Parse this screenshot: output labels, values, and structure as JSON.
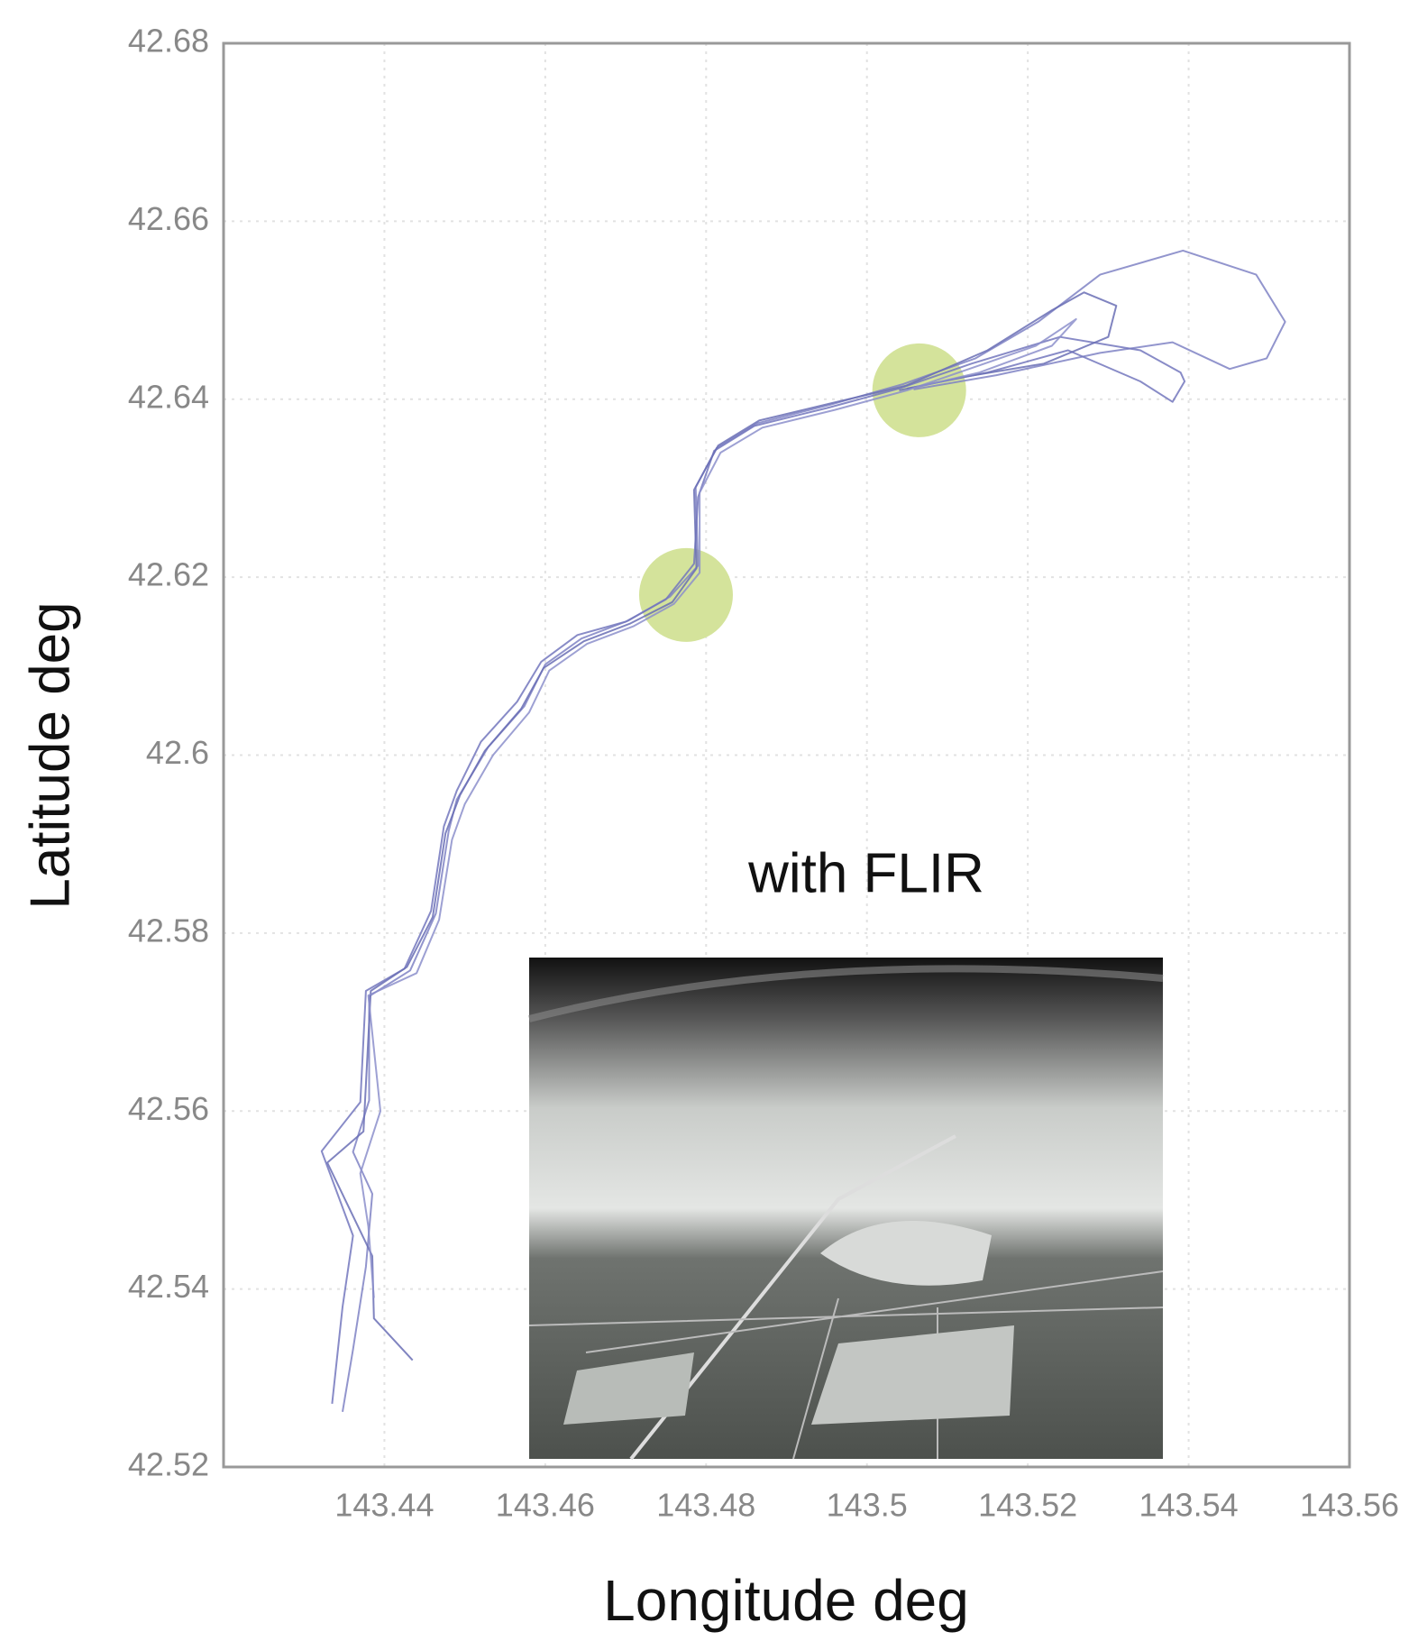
{
  "chart_data": {
    "type": "line",
    "xlabel": "Longitude deg",
    "ylabel": "Latitude deg",
    "annotation": "with FLIR",
    "xlim": [
      143.42,
      143.56
    ],
    "xticks": [
      143.44,
      143.46,
      143.48,
      143.5,
      143.52,
      143.54,
      143.56
    ],
    "ylim": [
      42.52,
      42.68
    ],
    "yticks": [
      42.52,
      42.54,
      42.56,
      42.58,
      42.6,
      42.62,
      42.64,
      42.66,
      42.68
    ],
    "grid": true,
    "highlights": [
      {
        "x": 143.4775,
        "y": 42.618,
        "color": "#d4e39b"
      },
      {
        "x": 143.5065,
        "y": 42.641,
        "color": "#d4e39b"
      }
    ],
    "series": [
      {
        "color": "#7f82c4",
        "x": [
          143.4348,
          143.4361,
          143.4377,
          143.4385,
          143.4361,
          143.4381,
          143.4381,
          143.4432,
          143.4464,
          143.448,
          143.449,
          143.4529,
          143.4574,
          143.46,
          143.4645,
          143.4703,
          143.4755,
          143.479,
          143.4787,
          143.4813,
          143.4864,
          143.4955,
          143.5045,
          143.5135,
          143.5213,
          143.529,
          143.5393,
          143.5484,
          143.552,
          143.5497,
          143.5451,
          143.538,
          143.529,
          143.5161,
          143.5058
        ],
        "values": [
          42.5262,
          42.5332,
          42.5425,
          42.5507,
          42.5554,
          42.5612,
          42.5729,
          42.5758,
          42.5822,
          42.5915,
          42.595,
          42.6009,
          42.6055,
          42.6102,
          42.6131,
          42.6151,
          42.6178,
          42.6213,
          42.6301,
          42.6345,
          42.6373,
          42.6394,
          42.6417,
          42.6446,
          42.6487,
          42.654,
          42.6567,
          42.654,
          42.6487,
          42.6446,
          42.6434,
          42.6464,
          42.6452,
          42.6427,
          42.6411
        ]
      },
      {
        "color": "#7377bd",
        "x": [
          143.4335,
          143.4348,
          143.4361,
          143.4322,
          143.437,
          143.4377,
          143.4425,
          143.4458,
          143.4474,
          143.449,
          143.452,
          143.4565,
          143.4595,
          143.464,
          143.47,
          143.475,
          143.4785,
          143.479,
          143.481,
          143.486,
          143.495,
          143.504,
          143.513,
          143.524,
          143.534,
          143.539,
          143.5395,
          143.538,
          143.534,
          143.525,
          143.515,
          143.505
        ],
        "values": [
          42.5271,
          42.538,
          42.546,
          42.5555,
          42.561,
          42.5735,
          42.576,
          42.5825,
          42.592,
          42.596,
          42.6015,
          42.606,
          42.6105,
          42.6135,
          42.615,
          42.6175,
          42.6215,
          42.629,
          42.6342,
          42.637,
          42.639,
          42.6412,
          42.644,
          42.647,
          42.6455,
          42.643,
          42.642,
          42.6397,
          42.642,
          42.6455,
          42.643,
          42.6412
        ]
      },
      {
        "color": "#6a6eb5",
        "x": [
          143.4435,
          143.4387,
          143.4385,
          143.4329,
          143.4374,
          143.4383,
          143.4428,
          143.446,
          143.4476,
          143.4494,
          143.4525,
          143.457,
          143.4598,
          143.4648,
          143.4706,
          143.4758,
          143.4788,
          143.4785,
          143.4815,
          143.4866,
          143.4958,
          143.5048,
          143.515,
          143.523,
          143.527,
          143.531,
          143.53,
          143.522,
          143.512,
          143.504
        ],
        "values": [
          42.532,
          42.5367,
          42.5437,
          42.5542,
          42.5577,
          42.5735,
          42.5762,
          42.5818,
          42.5912,
          42.5955,
          42.6005,
          42.6052,
          42.6098,
          42.6128,
          42.6148,
          42.6172,
          42.621,
          42.6298,
          42.6348,
          42.6376,
          42.6396,
          42.6415,
          42.6455,
          42.65,
          42.652,
          42.6505,
          42.647,
          42.644,
          42.6425,
          42.641
        ]
      },
      {
        "color": "#8c8fcb",
        "x": [
          143.4387,
          143.438,
          143.437,
          143.4395,
          143.438,
          143.444,
          143.4468,
          143.4484,
          143.45,
          143.4535,
          143.458,
          143.4605,
          143.4652,
          143.471,
          143.476,
          143.4792,
          143.4792,
          143.4818,
          143.487,
          143.496,
          143.505,
          143.514,
          143.521,
          143.526,
          143.523,
          143.514,
          143.506
        ],
        "values": [
          42.539,
          42.547,
          42.553,
          42.56,
          42.573,
          42.5755,
          42.5815,
          42.5905,
          42.5945,
          42.6,
          42.6048,
          42.6095,
          42.6125,
          42.6145,
          42.617,
          42.6205,
          42.6295,
          42.634,
          42.6368,
          42.6388,
          42.641,
          42.6438,
          42.646,
          42.649,
          42.646,
          42.643,
          42.6413
        ]
      }
    ]
  }
}
